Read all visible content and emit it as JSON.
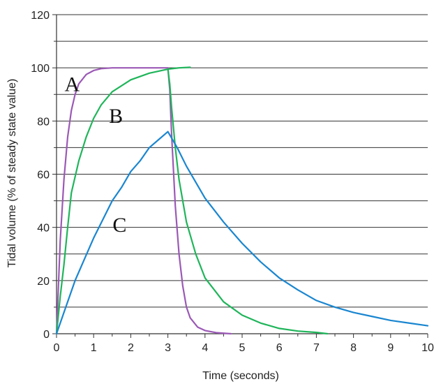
{
  "chart_data": {
    "type": "line",
    "xlabel": "Time (seconds)",
    "ylabel": "Tidal volume (% of steady state value)",
    "xlim": [
      0,
      10
    ],
    "ylim": [
      0,
      120
    ],
    "x_ticks": [
      "0",
      "1",
      "2",
      "3",
      "4",
      "5",
      "6",
      "7",
      "8",
      "9",
      "10"
    ],
    "y_ticks": [
      "0",
      "20",
      "40",
      "60",
      "80",
      "100",
      "120"
    ],
    "grid": "horizontal lines every 10 units",
    "series": [
      {
        "name": "A",
        "color": "#9b59b6",
        "points": [
          [
            0,
            0
          ],
          [
            0.1,
            35
          ],
          [
            0.2,
            58
          ],
          [
            0.3,
            74
          ],
          [
            0.4,
            84
          ],
          [
            0.5,
            90
          ],
          [
            0.6,
            94
          ],
          [
            0.8,
            97.5
          ],
          [
            1.0,
            99
          ],
          [
            1.2,
            99.7
          ],
          [
            1.5,
            100
          ],
          [
            2.0,
            100
          ],
          [
            2.5,
            100
          ],
          [
            3.0,
            100
          ],
          [
            3.05,
            92
          ],
          [
            3.1,
            75
          ],
          [
            3.2,
            48
          ],
          [
            3.3,
            30
          ],
          [
            3.4,
            18
          ],
          [
            3.5,
            10
          ],
          [
            3.6,
            6
          ],
          [
            3.8,
            2.5
          ],
          [
            4.0,
            1.2
          ],
          [
            4.3,
            0.4
          ],
          [
            4.7,
            0
          ]
        ]
      },
      {
        "name": "B",
        "color": "#1fb55a",
        "points": [
          [
            0,
            0
          ],
          [
            0.1,
            14
          ],
          [
            0.2,
            26
          ],
          [
            0.3,
            40
          ],
          [
            0.4,
            53
          ],
          [
            0.6,
            65
          ],
          [
            0.8,
            74
          ],
          [
            1.0,
            81
          ],
          [
            1.2,
            86
          ],
          [
            1.5,
            91
          ],
          [
            2.0,
            95.5
          ],
          [
            2.5,
            98
          ],
          [
            3.0,
            99.5
          ],
          [
            3.3,
            100
          ],
          [
            3.6,
            100.2
          ],
          [
            3.0,
            99.5
          ],
          [
            3.05,
            94
          ],
          [
            3.1,
            85
          ],
          [
            3.2,
            70
          ],
          [
            3.3,
            58
          ],
          [
            3.5,
            42
          ],
          [
            3.75,
            30
          ],
          [
            4.0,
            21
          ],
          [
            4.5,
            12
          ],
          [
            5.0,
            7
          ],
          [
            5.5,
            4
          ],
          [
            6.0,
            2
          ],
          [
            6.5,
            1
          ],
          [
            7.0,
            0.5
          ],
          [
            7.3,
            0
          ]
        ]
      },
      {
        "name": "C",
        "color": "#1a86d0",
        "points": [
          [
            0,
            0
          ],
          [
            0.25,
            10
          ],
          [
            0.5,
            20
          ],
          [
            0.75,
            28
          ],
          [
            1.0,
            36
          ],
          [
            1.25,
            43
          ],
          [
            1.5,
            50
          ],
          [
            1.75,
            55
          ],
          [
            2.0,
            61
          ],
          [
            2.25,
            65
          ],
          [
            2.5,
            70
          ],
          [
            2.75,
            73
          ],
          [
            3.0,
            76
          ],
          [
            3.25,
            70
          ],
          [
            3.5,
            63
          ],
          [
            3.75,
            57
          ],
          [
            4.0,
            51
          ],
          [
            4.5,
            42
          ],
          [
            5.0,
            34
          ],
          [
            5.5,
            27
          ],
          [
            6.0,
            21
          ],
          [
            6.5,
            16.5
          ],
          [
            7.0,
            12.5
          ],
          [
            7.5,
            10
          ],
          [
            8.0,
            8
          ],
          [
            8.5,
            6.5
          ],
          [
            9.0,
            5
          ],
          [
            9.5,
            4
          ],
          [
            10.0,
            3
          ]
        ]
      }
    ],
    "annotations": [
      {
        "text": "A",
        "x": 0.42,
        "y": 96
      },
      {
        "text": "B",
        "x": 1.6,
        "y": 84
      },
      {
        "text": "C",
        "x": 1.7,
        "y": 43
      }
    ]
  }
}
